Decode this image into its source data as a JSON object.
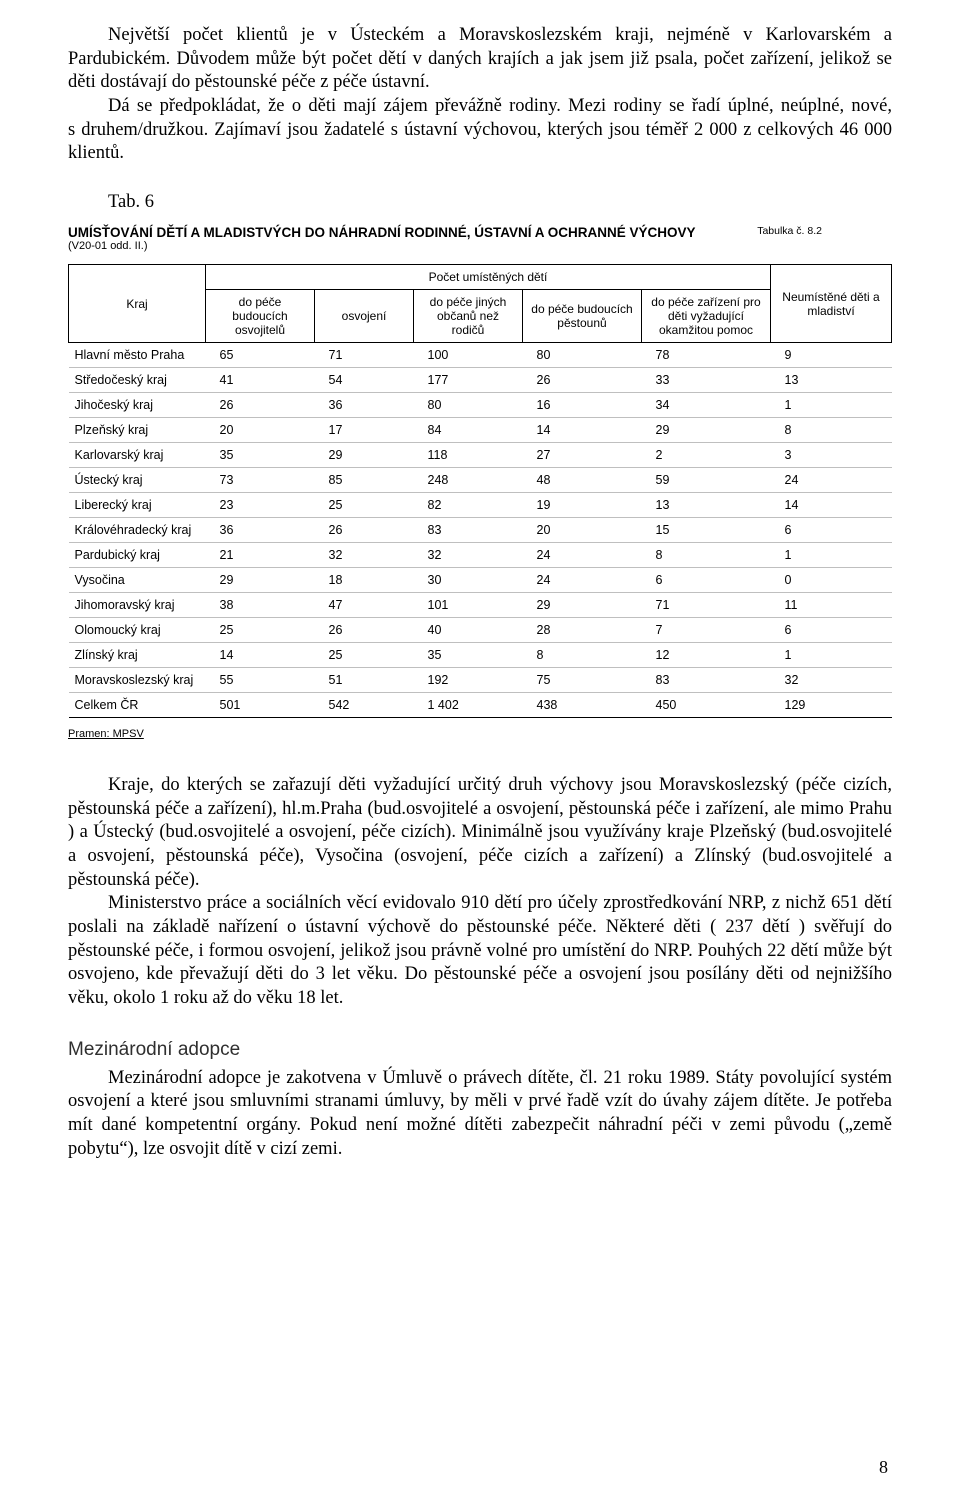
{
  "intro": {
    "p1": "Největší počet klientů je v Ústeckém a Moravskoslezském kraji, nejméně v Karlovarském a Pardubickém. Důvodem může být počet dětí v daných krajích a jak jsem již psala, počet zařízení, jelikož se děti dostávají do pěstounské péče z péče ústavní.",
    "p2": "Dá se předpokládat, že o děti mají zájem převážně rodiny. Mezi rodiny se řadí úplné, neúplné, nové, s druhem/družkou. Zajímaví jsou žadatelé s ústavní výchovou, kterých jsou téměř 2 000 z celkových 46 000 klientů."
  },
  "tab_label": "Tab. 6",
  "table": {
    "title": "UMÍSŤOVÁNÍ DĚTÍ A MLADISTVÝCH DO NÁHRADNÍ RODINNÉ, ÚSTAVNÍ A OCHRANNÉ VÝCHOVY",
    "subtitle": "(V20-01 odd. II.)",
    "ref": "Tabulka č. 8.2",
    "banner": "Počet umístěných dětí",
    "cols": {
      "kraj": "Kraj",
      "a": "do péče budoucích osvojitelů",
      "b": "osvojení",
      "c": "do péče jiných občanů než rodičů",
      "d": "do péče budoucích pěstounů",
      "e": "do péče zařízení pro děti vyžadující okamžitou pomoc",
      "f": "Neumístěné děti a mladiství"
    },
    "rows": [
      {
        "k": "Hlavní město Praha",
        "a": "65",
        "b": "71",
        "c": "100",
        "d": "80",
        "e": "78",
        "f": "9"
      },
      {
        "k": "Středočeský kraj",
        "a": "41",
        "b": "54",
        "c": "177",
        "d": "26",
        "e": "33",
        "f": "13"
      },
      {
        "k": "Jihočeský kraj",
        "a": "26",
        "b": "36",
        "c": "80",
        "d": "16",
        "e": "34",
        "f": "1"
      },
      {
        "k": "Plzeňský kraj",
        "a": "20",
        "b": "17",
        "c": "84",
        "d": "14",
        "e": "29",
        "f": "8"
      },
      {
        "k": "Karlovarský kraj",
        "a": "35",
        "b": "29",
        "c": "118",
        "d": "27",
        "e": "2",
        "f": "3"
      },
      {
        "k": "Ústecký kraj",
        "a": "73",
        "b": "85",
        "c": "248",
        "d": "48",
        "e": "59",
        "f": "24"
      },
      {
        "k": "Liberecký kraj",
        "a": "23",
        "b": "25",
        "c": "82",
        "d": "19",
        "e": "13",
        "f": "14"
      },
      {
        "k": "Královéhradecký kraj",
        "a": "36",
        "b": "26",
        "c": "83",
        "d": "20",
        "e": "15",
        "f": "6"
      },
      {
        "k": "Pardubický kraj",
        "a": "21",
        "b": "32",
        "c": "32",
        "d": "24",
        "e": "8",
        "f": "1"
      },
      {
        "k": "Vysočina",
        "a": "29",
        "b": "18",
        "c": "30",
        "d": "24",
        "e": "6",
        "f": "0"
      },
      {
        "k": "Jihomoravský kraj",
        "a": "38",
        "b": "47",
        "c": "101",
        "d": "29",
        "e": "71",
        "f": "11"
      },
      {
        "k": "Olomoucký kraj",
        "a": "25",
        "b": "26",
        "c": "40",
        "d": "28",
        "e": "7",
        "f": "6"
      },
      {
        "k": "Zlínský kraj",
        "a": "14",
        "b": "25",
        "c": "35",
        "d": "8",
        "e": "12",
        "f": "1"
      },
      {
        "k": "Moravskoslezský kraj",
        "a": "55",
        "b": "51",
        "c": "192",
        "d": "75",
        "e": "83",
        "f": "32"
      }
    ],
    "total": {
      "k": "Celkem ČR",
      "a": "501",
      "b": "542",
      "c": "1 402",
      "d": "438",
      "e": "450",
      "f": "129"
    },
    "source": "Pramen: MPSV"
  },
  "after": {
    "p1": "Kraje, do kterých se zařazují děti vyžadující určitý druh výchovy jsou Moravskoslezský (péče cizích, pěstounská péče a zařízení), hl.m.Praha (bud.osvojitelé a osvojení, pěstounská péče i zařízení, ale mimo Prahu ) a Ústecký (bud.osvojitelé a osvojení, péče cizích). Minimálně jsou využívány kraje Plzeňský (bud.osvojitelé a osvojení, pěstounská péče), Vysočina (osvojení, péče cizích a zařízení) a Zlínský (bud.osvojitelé a pěstounská péče).",
    "p2": "Ministerstvo práce a sociálních věcí evidovalo 910 dětí pro účely zprostředkování NRP, z nichž 651 dětí poslali na základě nařízení o ústavní výchově do pěstounské péče. Některé děti ( 237 dětí ) svěřují do pěstounské péče, i formou osvojení, jelikož jsou právně volné pro umístění do NRP. Pouhých 22 dětí může být osvojeno, kde převažují děti do 3 let věku. Do pěstounské péče a osvojení jsou posílány děti od nejnižšího věku, okolo 1 roku až do věku 18 let."
  },
  "section_title": "Mezinárodní adopce",
  "section_p": "Mezinárodní adopce je zakotvena v Úmluvě o právech dítěte, čl. 21 roku 1989. Státy povolující systém osvojení a které jsou smluvními stranami úmluvy, by měli v prvé řadě vzít do úvahy zájem dítěte. Je potřeba mít dané kompetentní orgány. Pokud není možné dítěti zabezpečit náhradní péči v zemi původu („země pobytu“), lze osvojit dítě v cizí zemi.",
  "page_number": "8"
}
